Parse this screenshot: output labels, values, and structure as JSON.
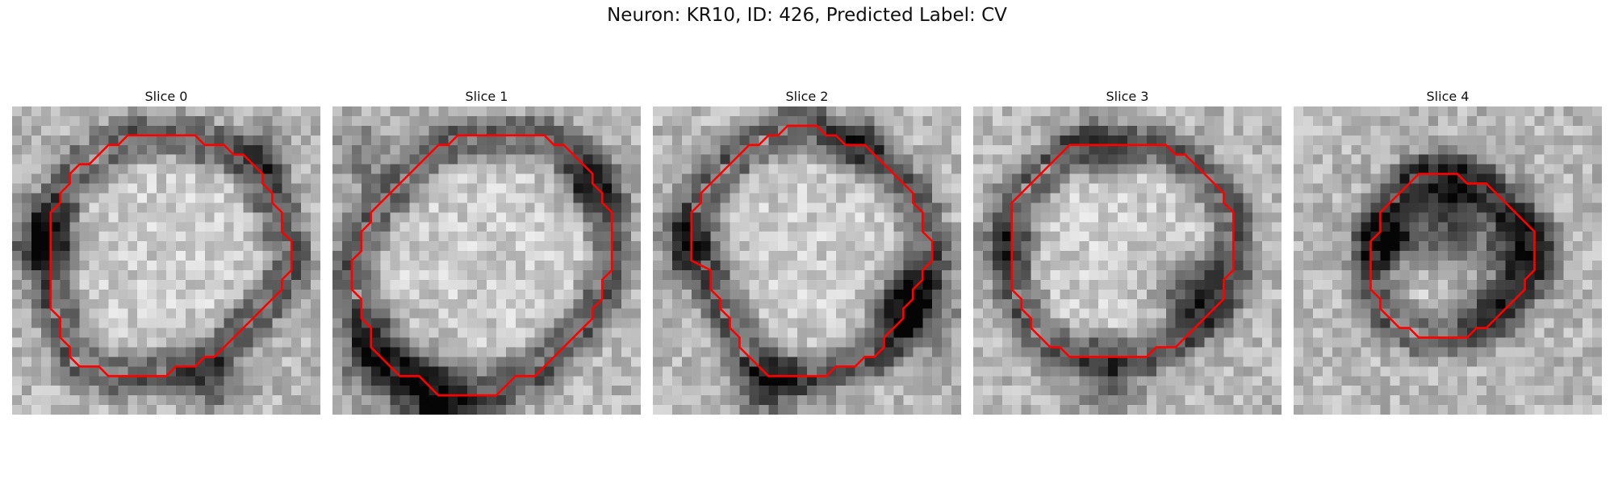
{
  "figure": {
    "title": "Neuron: KR10, ID: 426, Predicted Label: CV"
  },
  "contour_color": "#ff0000",
  "colormap": "gray",
  "panels": [
    {
      "title": "Slice 0",
      "cell_label": "nucleus with dark rim, contour encloses bright interior",
      "contour": [
        [
          14,
          3
        ],
        [
          19,
          3
        ],
        [
          20,
          4
        ],
        [
          22,
          4
        ],
        [
          23,
          5
        ],
        [
          24,
          5
        ],
        [
          25,
          6
        ],
        [
          26,
          7
        ],
        [
          26,
          8
        ],
        [
          27,
          9
        ],
        [
          27,
          10
        ],
        [
          28,
          11
        ],
        [
          28,
          13
        ],
        [
          29,
          14
        ],
        [
          29,
          17
        ],
        [
          28,
          18
        ],
        [
          28,
          19
        ],
        [
          27,
          20
        ],
        [
          26,
          21
        ],
        [
          25,
          22
        ],
        [
          24,
          23
        ],
        [
          23,
          24
        ],
        [
          22,
          25
        ],
        [
          21,
          26
        ],
        [
          20,
          26
        ],
        [
          19,
          27
        ],
        [
          17,
          27
        ],
        [
          16,
          28
        ],
        [
          10,
          28
        ],
        [
          9,
          27
        ],
        [
          7,
          27
        ],
        [
          6,
          26
        ],
        [
          6,
          25
        ],
        [
          5,
          24
        ],
        [
          5,
          22
        ],
        [
          4,
          21
        ],
        [
          4,
          11
        ],
        [
          5,
          10
        ],
        [
          5,
          9
        ],
        [
          6,
          8
        ],
        [
          6,
          7
        ],
        [
          7,
          6
        ],
        [
          8,
          6
        ],
        [
          9,
          5
        ],
        [
          10,
          4
        ],
        [
          11,
          4
        ],
        [
          12,
          3
        ]
      ],
      "dark_spots": [
        [
          3,
          14,
          2.6,
          0.85
        ],
        [
          21,
          29,
          2.2,
          0.55
        ],
        [
          26,
          5,
          2.0,
          0.5
        ]
      ]
    },
    {
      "title": "Slice 1",
      "contour": [
        [
          13,
          3
        ],
        [
          22,
          3
        ],
        [
          23,
          4
        ],
        [
          24,
          4
        ],
        [
          25,
          5
        ],
        [
          26,
          6
        ],
        [
          27,
          7
        ],
        [
          27,
          8
        ],
        [
          28,
          9
        ],
        [
          28,
          10
        ],
        [
          29,
          11
        ],
        [
          29,
          17
        ],
        [
          28,
          18
        ],
        [
          28,
          20
        ],
        [
          27,
          21
        ],
        [
          27,
          22
        ],
        [
          26,
          23
        ],
        [
          25,
          24
        ],
        [
          24,
          25
        ],
        [
          23,
          26
        ],
        [
          22,
          27
        ],
        [
          21,
          28
        ],
        [
          19,
          28
        ],
        [
          18,
          29
        ],
        [
          17,
          30
        ],
        [
          11,
          30
        ],
        [
          10,
          29
        ],
        [
          9,
          28
        ],
        [
          7,
          28
        ],
        [
          6,
          27
        ],
        [
          5,
          26
        ],
        [
          4,
          25
        ],
        [
          4,
          23
        ],
        [
          3,
          22
        ],
        [
          3,
          20
        ],
        [
          2,
          19
        ],
        [
          2,
          16
        ],
        [
          3,
          15
        ],
        [
          3,
          13
        ],
        [
          4,
          12
        ],
        [
          4,
          11
        ],
        [
          5,
          10
        ],
        [
          6,
          9
        ],
        [
          7,
          8
        ],
        [
          8,
          7
        ],
        [
          9,
          6
        ],
        [
          10,
          5
        ],
        [
          11,
          4
        ],
        [
          12,
          4
        ]
      ],
      "dark_spots": [
        [
          10,
          30,
          3.0,
          0.9
        ],
        [
          4,
          26,
          2.6,
          0.7
        ],
        [
          27,
          8,
          2.4,
          0.6
        ],
        [
          3,
          5,
          2.2,
          0.5
        ]
      ]
    },
    {
      "title": "Slice 2",
      "contour": [
        [
          14,
          2
        ],
        [
          17,
          2
        ],
        [
          18,
          3
        ],
        [
          19,
          3
        ],
        [
          20,
          4
        ],
        [
          22,
          4
        ],
        [
          23,
          5
        ],
        [
          24,
          6
        ],
        [
          25,
          7
        ],
        [
          26,
          8
        ],
        [
          27,
          9
        ],
        [
          27,
          10
        ],
        [
          28,
          11
        ],
        [
          28,
          13
        ],
        [
          29,
          14
        ],
        [
          29,
          16
        ],
        [
          28,
          17
        ],
        [
          28,
          18
        ],
        [
          27,
          19
        ],
        [
          27,
          20
        ],
        [
          26,
          21
        ],
        [
          26,
          22
        ],
        [
          25,
          23
        ],
        [
          24,
          24
        ],
        [
          24,
          25
        ],
        [
          23,
          26
        ],
        [
          22,
          26
        ],
        [
          21,
          27
        ],
        [
          19,
          27
        ],
        [
          18,
          28
        ],
        [
          12,
          28
        ],
        [
          11,
          27
        ],
        [
          10,
          26
        ],
        [
          9,
          25
        ],
        [
          9,
          24
        ],
        [
          8,
          23
        ],
        [
          8,
          22
        ],
        [
          7,
          21
        ],
        [
          7,
          20
        ],
        [
          6,
          19
        ],
        [
          6,
          17
        ],
        [
          4,
          16
        ],
        [
          4,
          11
        ],
        [
          5,
          10
        ],
        [
          5,
          9
        ],
        [
          6,
          8
        ],
        [
          7,
          7
        ],
        [
          8,
          6
        ],
        [
          9,
          5
        ],
        [
          10,
          4
        ],
        [
          11,
          4
        ],
        [
          12,
          3
        ],
        [
          13,
          3
        ]
      ],
      "dark_spots": [
        [
          27,
          21,
          3.0,
          0.9
        ],
        [
          4,
          14,
          2.4,
          0.6
        ],
        [
          12,
          29,
          2.6,
          0.7
        ],
        [
          21,
          4,
          2.0,
          0.5
        ]
      ]
    },
    {
      "title": "Slice 3",
      "contour": [
        [
          10,
          4
        ],
        [
          20,
          4
        ],
        [
          21,
          5
        ],
        [
          22,
          5
        ],
        [
          23,
          6
        ],
        [
          24,
          7
        ],
        [
          25,
          8
        ],
        [
          26,
          9
        ],
        [
          26,
          10
        ],
        [
          27,
          11
        ],
        [
          27,
          17
        ],
        [
          26,
          18
        ],
        [
          26,
          20
        ],
        [
          25,
          21
        ],
        [
          24,
          22
        ],
        [
          23,
          23
        ],
        [
          22,
          24
        ],
        [
          21,
          25
        ],
        [
          19,
          25
        ],
        [
          18,
          26
        ],
        [
          10,
          26
        ],
        [
          9,
          25
        ],
        [
          8,
          25
        ],
        [
          7,
          24
        ],
        [
          6,
          23
        ],
        [
          6,
          22
        ],
        [
          5,
          21
        ],
        [
          5,
          20
        ],
        [
          4,
          19
        ],
        [
          4,
          10
        ],
        [
          5,
          9
        ],
        [
          6,
          8
        ],
        [
          7,
          7
        ],
        [
          8,
          6
        ],
        [
          9,
          5
        ]
      ],
      "dark_spots": [
        [
          22.5,
          19,
          2.4,
          0.95
        ],
        [
          14,
          29,
          2.2,
          0.6
        ],
        [
          3,
          14,
          2.0,
          0.45
        ],
        [
          13,
          4,
          2.0,
          0.5
        ]
      ]
    },
    {
      "title": "Slice 4",
      "contour": [
        [
          13,
          7
        ],
        [
          17,
          7
        ],
        [
          18,
          8
        ],
        [
          20,
          8
        ],
        [
          21,
          9
        ],
        [
          22,
          10
        ],
        [
          23,
          11
        ],
        [
          24,
          12
        ],
        [
          25,
          13
        ],
        [
          25,
          17
        ],
        [
          24,
          18
        ],
        [
          24,
          19
        ],
        [
          23,
          20
        ],
        [
          22,
          21
        ],
        [
          21,
          22
        ],
        [
          20,
          23
        ],
        [
          19,
          23
        ],
        [
          18,
          24
        ],
        [
          13,
          24
        ],
        [
          12,
          23
        ],
        [
          11,
          23
        ],
        [
          10,
          22
        ],
        [
          9,
          21
        ],
        [
          9,
          20
        ],
        [
          8,
          19
        ],
        [
          8,
          14
        ],
        [
          9,
          13
        ],
        [
          9,
          11
        ],
        [
          10,
          10
        ],
        [
          11,
          9
        ],
        [
          12,
          8
        ]
      ],
      "dark_spots": [
        [
          16,
          11,
          3.5,
          0.95
        ],
        [
          10,
          14,
          2.2,
          0.8
        ],
        [
          23,
          15,
          2.4,
          0.85
        ],
        [
          20,
          21,
          2.0,
          0.6
        ]
      ]
    }
  ]
}
